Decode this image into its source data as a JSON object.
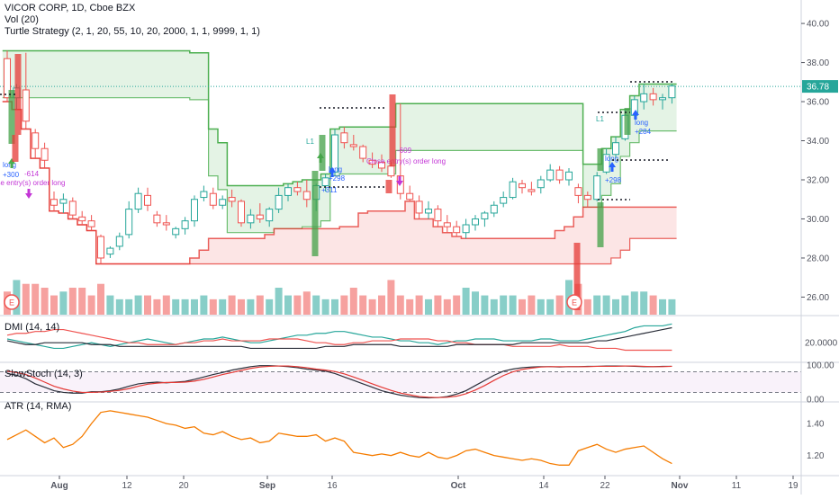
{
  "legend": {
    "symbol": "VICOR CORP, 1D, Cboe BZX",
    "volume": "Vol (20)",
    "strategy": "Turtle Strategy (2, 1, 20, 55, 10, 20, 2000, 1, 1, 9999, 1, 1)",
    "dmi": "DMI (14, 14)",
    "stoch": "SlowStoch (14, 3)",
    "atr": "ATR (14, RMA)"
  },
  "price_scale": {
    "ticks": [
      "40.00",
      "38.00",
      "36.00",
      "34.00",
      "32.00",
      "30.00",
      "28.00",
      "26.00"
    ],
    "tick_values": [
      40,
      38,
      36,
      34,
      32,
      30,
      28,
      26
    ],
    "last_price": "36.78",
    "last_value": 36.78
  },
  "dmi_scale": {
    "label": "20.0000",
    "value": 20
  },
  "stoch_scale": {
    "ticks": [
      "100.00",
      "0.00"
    ],
    "values": [
      100,
      0
    ]
  },
  "atr_scale": {
    "ticks": [
      "1.40",
      "1.20"
    ],
    "values": [
      1.4,
      1.2
    ]
  },
  "time_axis": {
    "labels": [
      "Aug",
      "12",
      "20",
      "Sep",
      "16",
      "Oct",
      "14",
      "22",
      "Nov",
      "11",
      "19"
    ],
    "bold": [
      true,
      false,
      false,
      true,
      false,
      true,
      false,
      false,
      true,
      false,
      false
    ]
  },
  "trade_labels": [
    {
      "text": "long",
      "color": "#2962ff"
    },
    {
      "text": "+300",
      "color": "#2962ff"
    },
    {
      "text": "-614",
      "color": "#c336d6"
    },
    {
      "text": "ose entry(s) order long",
      "color": "#c336d6"
    },
    {
      "text": "long",
      "color": "#2962ff"
    },
    {
      "text": "+298",
      "color": "#2962ff"
    },
    {
      "text": "+311",
      "color": "#2962ff"
    },
    {
      "text": "-609",
      "color": "#c336d6"
    },
    {
      "text": "Close entry(s) order long",
      "color": "#c336d6"
    },
    {
      "text": "long",
      "color": "#2962ff"
    },
    {
      "text": "+298",
      "color": "#2962ff"
    },
    {
      "text": "long",
      "color": "#2962ff"
    },
    {
      "text": "+284",
      "color": "#2962ff"
    },
    {
      "text": "L1",
      "color": "#26a69a"
    },
    {
      "text": "L1",
      "color": "#26a69a"
    }
  ],
  "earnings_label": "E",
  "colors": {
    "up": "#26a69a",
    "down": "#ef5350",
    "channel_green": "#4caf50",
    "channel_red": "#e53935",
    "dmi_plus": "#26a69a",
    "dmi_minus": "#ef5350",
    "adx": "#2a2e39",
    "stoch_k": "#2a2e39",
    "stoch_d": "#e53935",
    "atr": "#f57c00",
    "last_price_bg": "#26a69a"
  },
  "chart_data": {
    "type": "line",
    "title": "VICOR CORP, 1D, Cboe BZX",
    "dates": [
      "2019-07-24",
      "2019-07-25",
      "2019-07-26",
      "2019-07-29",
      "2019-07-30",
      "2019-07-31",
      "2019-08-01",
      "2019-08-02",
      "2019-08-05",
      "2019-08-06",
      "2019-08-07",
      "2019-08-08",
      "2019-08-09",
      "2019-08-12",
      "2019-08-13",
      "2019-08-14",
      "2019-08-15",
      "2019-08-16",
      "2019-08-19",
      "2019-08-20",
      "2019-08-21",
      "2019-08-22",
      "2019-08-23",
      "2019-08-26",
      "2019-08-27",
      "2019-08-28",
      "2019-08-29",
      "2019-08-30",
      "2019-09-03",
      "2019-09-04",
      "2019-09-05",
      "2019-09-06",
      "2019-09-09",
      "2019-09-10",
      "2019-09-11",
      "2019-09-12",
      "2019-09-13",
      "2019-09-16",
      "2019-09-17",
      "2019-09-18",
      "2019-09-19",
      "2019-09-20",
      "2019-09-23",
      "2019-09-24",
      "2019-09-25",
      "2019-09-26",
      "2019-09-27",
      "2019-09-30",
      "2019-10-01",
      "2019-10-02",
      "2019-10-03",
      "2019-10-04",
      "2019-10-07",
      "2019-10-08",
      "2019-10-09",
      "2019-10-10",
      "2019-10-11",
      "2019-10-14",
      "2019-10-15",
      "2019-10-16",
      "2019-10-17",
      "2019-10-18",
      "2019-10-21",
      "2019-10-22",
      "2019-10-23",
      "2019-10-24",
      "2019-10-25",
      "2019-10-28",
      "2019-10-29",
      "2019-10-30",
      "2019-10-31",
      "2019-11-01"
    ],
    "ohlc": [
      [
        38.2,
        38.6,
        36.0,
        36.2
      ],
      [
        36.2,
        36.9,
        35.6,
        36.7
      ],
      [
        36.6,
        38.5,
        34.6,
        35.0
      ],
      [
        34.4,
        34.6,
        33.1,
        33.6
      ],
      [
        33.6,
        33.9,
        32.6,
        33.0
      ],
      [
        31.0,
        31.4,
        30.4,
        30.7
      ],
      [
        30.8,
        31.3,
        30.3,
        31.0
      ],
      [
        30.9,
        31.1,
        30.0,
        30.2
      ],
      [
        30.1,
        30.4,
        29.7,
        29.9
      ],
      [
        29.9,
        30.2,
        29.4,
        29.6
      ],
      [
        29.1,
        29.2,
        27.7,
        28.0
      ],
      [
        28.2,
        28.6,
        28.0,
        28.5
      ],
      [
        28.6,
        29.3,
        28.4,
        29.1
      ],
      [
        29.2,
        30.9,
        29.0,
        30.5
      ],
      [
        30.5,
        31.6,
        30.3,
        31.3
      ],
      [
        31.2,
        31.6,
        30.4,
        30.7
      ],
      [
        30.2,
        30.4,
        29.6,
        29.8
      ],
      [
        29.8,
        30.2,
        29.4,
        29.7
      ],
      [
        29.2,
        29.6,
        29.0,
        29.5
      ],
      [
        29.5,
        30.1,
        29.2,
        29.9
      ],
      [
        29.9,
        31.2,
        29.6,
        31.0
      ],
      [
        31.1,
        31.7,
        30.9,
        31.4
      ],
      [
        31.3,
        31.6,
        30.5,
        30.7
      ],
      [
        30.7,
        31.2,
        30.5,
        31.0
      ],
      [
        31.1,
        31.5,
        30.6,
        30.9
      ],
      [
        30.9,
        31.0,
        29.6,
        29.8
      ],
      [
        29.8,
        30.5,
        29.5,
        30.2
      ],
      [
        30.2,
        30.8,
        29.8,
        30.0
      ],
      [
        29.9,
        30.6,
        29.6,
        30.5
      ],
      [
        30.5,
        31.6,
        30.3,
        31.2
      ],
      [
        31.2,
        31.8,
        30.9,
        31.6
      ],
      [
        31.6,
        31.9,
        31.2,
        31.4
      ],
      [
        31.4,
        32.0,
        30.6,
        31.0
      ],
      [
        31.0,
        31.8,
        30.4,
        31.7
      ],
      [
        31.7,
        32.3,
        31.4,
        32.1
      ],
      [
        32.4,
        34.6,
        32.2,
        34.3
      ],
      [
        34.4,
        34.7,
        33.6,
        33.9
      ],
      [
        33.8,
        34.3,
        33.5,
        33.7
      ],
      [
        33.7,
        33.8,
        32.9,
        33.1
      ],
      [
        33.0,
        33.4,
        32.6,
        32.8
      ],
      [
        32.9,
        33.3,
        32.4,
        32.6
      ],
      [
        32.7,
        32.9,
        32.1,
        32.2
      ],
      [
        32.2,
        35.9,
        31.0,
        31.3
      ],
      [
        31.3,
        31.7,
        30.9,
        31.0
      ],
      [
        30.9,
        31.2,
        30.0,
        30.3
      ],
      [
        30.3,
        30.9,
        30.0,
        30.5
      ],
      [
        30.5,
        30.7,
        29.6,
        29.9
      ],
      [
        29.8,
        30.2,
        29.3,
        29.6
      ],
      [
        29.6,
        29.9,
        29.1,
        29.3
      ],
      [
        29.3,
        30.0,
        29.0,
        29.7
      ],
      [
        29.7,
        30.2,
        29.4,
        30.0
      ],
      [
        30.0,
        30.4,
        29.6,
        30.3
      ],
      [
        30.3,
        30.9,
        30.1,
        30.7
      ],
      [
        30.8,
        31.4,
        30.6,
        31.1
      ],
      [
        31.1,
        32.1,
        31.0,
        31.9
      ],
      [
        31.8,
        32.0,
        31.3,
        31.6
      ],
      [
        31.5,
        31.9,
        31.2,
        31.4
      ],
      [
        31.6,
        32.2,
        31.3,
        32.0
      ],
      [
        32.0,
        32.8,
        31.9,
        32.5
      ],
      [
        32.5,
        32.7,
        31.8,
        32.0
      ],
      [
        32.0,
        32.6,
        31.7,
        32.4
      ],
      [
        31.6,
        31.8,
        30.8,
        31.2
      ],
      [
        31.2,
        31.4,
        30.6,
        31.0
      ],
      [
        31.0,
        32.4,
        30.9,
        32.2
      ],
      [
        32.4,
        33.6,
        32.3,
        33.3
      ],
      [
        33.3,
        34.2,
        33.1,
        33.9
      ],
      [
        34.1,
        35.6,
        34.0,
        35.3
      ],
      [
        35.3,
        36.3,
        35.1,
        36.1
      ],
      [
        36.0,
        36.9,
        35.6,
        36.4
      ],
      [
        36.4,
        36.7,
        35.8,
        36.1
      ],
      [
        36.1,
        36.4,
        35.6,
        36.2
      ],
      [
        36.2,
        36.9,
        35.9,
        36.8
      ]
    ],
    "volume": [
      6,
      9,
      8,
      8,
      7,
      5,
      6,
      7,
      7,
      5,
      8,
      5,
      4,
      4,
      5,
      5,
      4,
      5,
      4,
      4,
      4,
      5,
      4,
      4,
      5,
      4,
      4,
      5,
      4,
      7,
      5,
      5,
      6,
      5,
      4,
      4,
      5,
      7,
      5,
      4,
      5,
      9,
      5,
      4,
      5,
      4,
      5,
      4,
      5,
      7,
      6,
      5,
      4,
      5,
      5,
      4,
      5,
      4,
      4,
      5,
      9,
      8,
      4,
      5,
      5,
      4,
      5,
      6,
      6,
      5,
      4,
      4
    ],
    "dmi_plus": [
      22,
      21,
      20,
      19,
      18,
      17,
      17,
      18,
      19,
      20,
      19,
      18,
      19,
      20,
      21,
      22,
      21,
      20,
      19,
      20,
      21,
      22,
      22,
      23,
      22,
      21,
      20,
      20,
      21,
      22,
      23,
      24,
      24,
      25,
      25,
      26,
      26,
      25,
      24,
      23,
      23,
      22,
      21,
      21,
      20,
      20,
      19,
      20,
      21,
      21,
      22,
      22,
      22,
      21,
      21,
      21,
      21,
      22,
      22,
      21,
      21,
      21,
      22,
      23,
      24,
      25,
      26,
      28,
      29,
      29,
      29,
      30
    ],
    "dmi_minus": [
      24,
      25,
      25,
      26,
      26,
      27,
      27,
      26,
      25,
      24,
      23,
      22,
      21,
      20,
      20,
      19,
      19,
      19,
      19,
      20,
      20,
      21,
      21,
      22,
      21,
      21,
      21,
      21,
      22,
      22,
      22,
      22,
      21,
      20,
      20,
      19,
      19,
      20,
      20,
      21,
      21,
      21,
      22,
      22,
      22,
      22,
      21,
      21,
      20,
      20,
      19,
      19,
      19,
      19,
      18,
      18,
      18,
      18,
      18,
      19,
      18,
      18,
      18,
      17,
      17,
      17,
      16,
      16,
      16,
      16,
      16,
      16
    ],
    "adx": [
      21,
      20,
      19,
      19,
      20,
      20,
      20,
      20,
      20,
      19,
      19,
      19,
      18,
      18,
      18,
      18,
      18,
      18,
      18,
      18,
      18,
      18,
      18,
      18,
      18,
      18,
      17,
      17,
      17,
      17,
      17,
      17,
      17,
      17,
      18,
      18,
      18,
      19,
      19,
      19,
      19,
      19,
      18,
      18,
      18,
      18,
      18,
      18,
      19,
      19,
      19,
      19,
      19,
      19,
      19,
      20,
      20,
      20,
      20,
      20,
      20,
      20,
      20,
      21,
      21,
      22,
      23,
      24,
      25,
      26,
      27,
      28
    ],
    "stoch_k": [
      75,
      70,
      60,
      45,
      35,
      25,
      20,
      18,
      18,
      22,
      22,
      25,
      30,
      38,
      45,
      48,
      50,
      48,
      50,
      52,
      58,
      65,
      72,
      78,
      85,
      90,
      95,
      98,
      98,
      97,
      95,
      92,
      88,
      85,
      82,
      75,
      65,
      55,
      45,
      35,
      25,
      18,
      12,
      8,
      5,
      4,
      5,
      8,
      15,
      25,
      40,
      55,
      70,
      82,
      88,
      92,
      94,
      95,
      95,
      94,
      95,
      95,
      96,
      96,
      97,
      97,
      97,
      96,
      95,
      95,
      96,
      96
    ],
    "stoch_d": [
      82,
      78,
      72,
      62,
      50,
      38,
      30,
      24,
      20,
      20,
      21,
      23,
      26,
      31,
      38,
      44,
      47,
      49,
      49,
      50,
      53,
      58,
      65,
      72,
      78,
      84,
      90,
      94,
      96,
      97,
      97,
      95,
      92,
      88,
      85,
      81,
      74,
      65,
      55,
      45,
      35,
      26,
      18,
      13,
      8,
      6,
      5,
      6,
      9,
      16,
      27,
      40,
      55,
      69,
      80,
      87,
      91,
      94,
      95,
      95,
      95,
      95,
      95,
      96,
      96,
      96,
      97,
      97,
      96,
      95,
      95,
      96
    ],
    "atr": [
      1.3,
      1.33,
      1.36,
      1.32,
      1.28,
      1.31,
      1.25,
      1.27,
      1.32,
      1.4,
      1.47,
      1.48,
      1.47,
      1.46,
      1.45,
      1.44,
      1.42,
      1.4,
      1.39,
      1.37,
      1.38,
      1.34,
      1.33,
      1.35,
      1.32,
      1.3,
      1.31,
      1.28,
      1.29,
      1.34,
      1.33,
      1.32,
      1.32,
      1.33,
      1.29,
      1.31,
      1.29,
      1.22,
      1.21,
      1.2,
      1.21,
      1.2,
      1.22,
      1.2,
      1.19,
      1.22,
      1.19,
      1.18,
      1.2,
      1.23,
      1.24,
      1.22,
      1.2,
      1.19,
      1.18,
      1.17,
      1.18,
      1.17,
      1.15,
      1.14,
      1.14,
      1.23,
      1.25,
      1.27,
      1.24,
      1.22,
      1.24,
      1.25,
      1.26,
      1.22,
      1.18,
      1.15
    ],
    "price_ylim": [
      25.1,
      41.2
    ],
    "dmi_ylim": [
      10,
      34
    ],
    "stoch_ylim": [
      -5,
      105
    ],
    "atr_ylim": [
      1.08,
      1.53
    ],
    "grid": false,
    "legend_position": "top-left"
  }
}
